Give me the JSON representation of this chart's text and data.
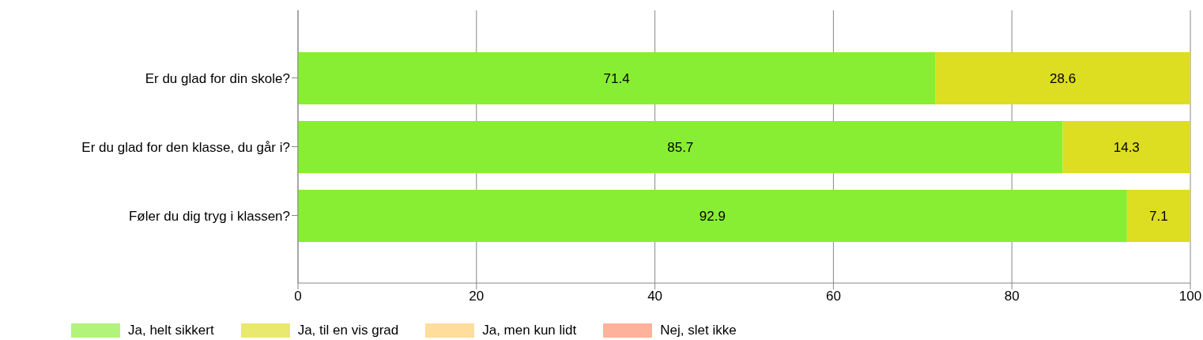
{
  "chart_data": {
    "type": "bar",
    "orientation": "horizontal",
    "stacked": true,
    "categories": [
      "Er du glad for din skole?",
      "Er du glad for den klasse, du går i?",
      "Føler du dig tryg i klassen?"
    ],
    "series": [
      {
        "name": "Ja, helt sikkert",
        "color": "#88ee33",
        "values": [
          71.4,
          85.7,
          92.9
        ],
        "value_labels": [
          "71.4",
          "85.7",
          "92.9"
        ]
      },
      {
        "name": "Ja, til en vis grad",
        "color": "#dddd22",
        "values": [
          28.6,
          14.3,
          7.1
        ],
        "value_labels": [
          "28.6",
          "14.3",
          "7.1"
        ]
      },
      {
        "name": "Ja, men kun lidt",
        "color": "#ffcc66",
        "values": [
          0,
          0,
          0
        ],
        "value_labels": [
          null,
          null,
          null
        ]
      },
      {
        "name": "Nej, slet ikke",
        "color": "#ff8866",
        "values": [
          0,
          0,
          0
        ],
        "value_labels": [
          null,
          null,
          null
        ]
      }
    ],
    "xlim": [
      0,
      100
    ],
    "xticks": [
      0,
      20,
      40,
      60,
      80,
      100
    ],
    "grid": "x",
    "legend": "bottom left"
  }
}
